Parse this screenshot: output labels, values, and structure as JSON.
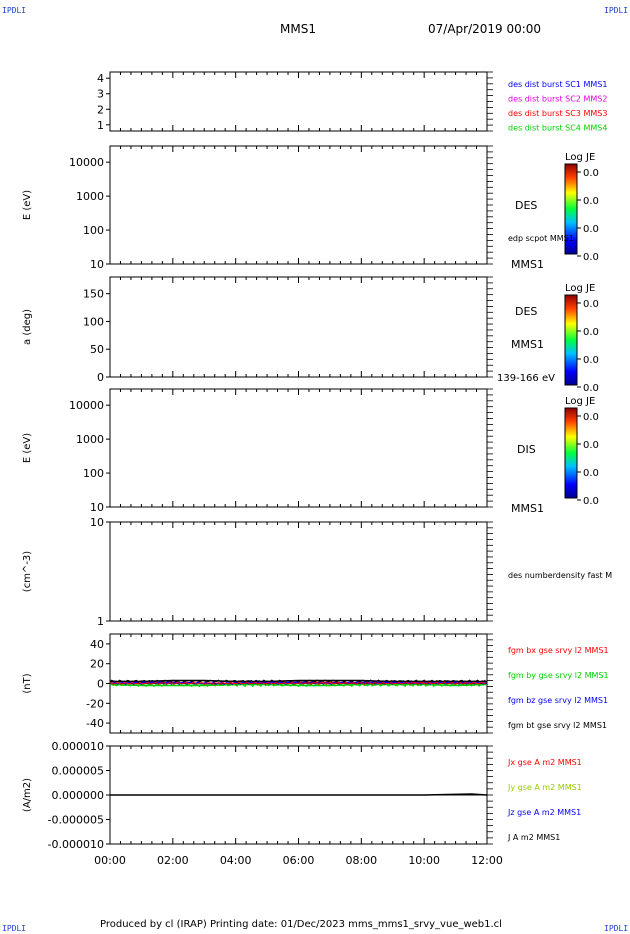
{
  "corner_label": "IPDLI",
  "header": {
    "spacecraft": "MMS1",
    "datetime": "07/Apr/2019 00:00"
  },
  "footer": "Produced by cl (IRAP)   Printing date: 01/Dec/2023   mms_mms1_srvy_vue_web1.cl",
  "colorbar": {
    "title": "Log JE",
    "ticks": [
      "0.0",
      "0.0",
      "0.0",
      "0.0"
    ]
  },
  "colors": {
    "blue": "#0000ff",
    "magenta": "#e000e0",
    "red": "#ff0000",
    "green": "#00d000",
    "black": "#000000",
    "jy": "#99cc00"
  },
  "chart_data": [
    {
      "type": "line",
      "panel": "burst-availability",
      "yticks": [
        "4",
        "3",
        "2",
        "1"
      ],
      "ylim": [
        0.6,
        4.4
      ],
      "legend": [
        {
          "label": "des dist burst SC1 MMS1",
          "color": "#0000ff"
        },
        {
          "label": "des dist burst SC2 MMS2",
          "color": "#e000e0"
        },
        {
          "label": "des dist burst SC3 MMS3",
          "color": "#ff0000"
        },
        {
          "label": "des dist burst SC4 MMS4",
          "color": "#00d000"
        }
      ],
      "series": []
    },
    {
      "type": "heatmap",
      "panel": "des-energy-spectrogram",
      "ylabel": "E (eV)",
      "yscale": "log",
      "yticks": [
        "10000",
        "1000",
        "100",
        "10"
      ],
      "ylim": [
        10,
        30000
      ],
      "side_labels": [
        "DES",
        "edp scpot MMS1",
        "MMS1"
      ]
    },
    {
      "type": "heatmap",
      "panel": "des-pitch-angle",
      "ylabel": "a (deg)",
      "yticks": [
        "150",
        "100",
        "50",
        "0"
      ],
      "ylim": [
        0,
        180
      ],
      "side_labels": [
        "DES",
        "MMS1",
        "139-166 eV"
      ]
    },
    {
      "type": "heatmap",
      "panel": "dis-energy-spectrogram",
      "ylabel": "E (eV)",
      "yscale": "log",
      "yticks": [
        "10000",
        "1000",
        "100",
        "10"
      ],
      "ylim": [
        10,
        30000
      ],
      "side_labels": [
        "DIS",
        "MMS1"
      ]
    },
    {
      "type": "line",
      "panel": "density",
      "ylabel": "(cm^-3)",
      "yscale": "log",
      "yticks": [
        "10",
        "1"
      ],
      "ylim": [
        1,
        10
      ],
      "legend": [
        {
          "label": "des numberdensity fast M",
          "color": "#000000"
        }
      ],
      "series": []
    },
    {
      "type": "line",
      "panel": "magnetic-field",
      "ylabel": "(nT)",
      "yticks": [
        "40",
        "20",
        "0",
        "-20",
        "-40"
      ],
      "ylim": [
        -50,
        50
      ],
      "legend": [
        {
          "label": "fgm bx gse srvy l2 MMS1",
          "color": "#ff0000"
        },
        {
          "label": "fgm by gse srvy l2 MMS1",
          "color": "#00d000"
        },
        {
          "label": "fgm bz gse srvy l2 MMS1",
          "color": "#0000ff"
        },
        {
          "label": "fgm bt gse srvy l2 MMS1",
          "color": "#000000"
        }
      ],
      "series": [
        {
          "name": "fgm bt gse srvy l2 MMS1",
          "color": "#000000",
          "x": [
            0,
            1,
            2,
            3,
            4,
            5,
            6,
            7,
            8,
            9,
            10,
            11,
            12
          ],
          "y": [
            2,
            2,
            3,
            3,
            2,
            2,
            3,
            3,
            3,
            2,
            2,
            2,
            2
          ]
        },
        {
          "name": "fgm bx gse srvy l2 MMS1",
          "color": "#ff0000",
          "x": [
            0,
            1,
            2,
            3,
            4,
            5,
            6,
            7,
            8,
            9,
            10,
            11,
            12
          ],
          "y": [
            0,
            0,
            1,
            0,
            -1,
            0,
            1,
            1,
            0,
            0,
            1,
            0,
            0
          ]
        },
        {
          "name": "fgm by gse srvy l2 MMS1",
          "color": "#00d000",
          "x": [
            0,
            1,
            2,
            3,
            4,
            5,
            6,
            7,
            8,
            9,
            10,
            11,
            12
          ],
          "y": [
            -1,
            -2,
            -2,
            -2,
            -1,
            -1,
            -2,
            -2,
            -1,
            -1,
            -1,
            -2,
            -1
          ]
        },
        {
          "name": "fgm bz gse srvy l2 MMS1",
          "color": "#0000ff",
          "x": [
            0,
            1,
            2,
            3,
            4,
            5,
            6,
            7,
            8,
            9,
            10,
            11,
            12
          ],
          "y": [
            0,
            1,
            1,
            0,
            0,
            1,
            1,
            0,
            1,
            1,
            0,
            1,
            0
          ]
        }
      ]
    },
    {
      "type": "line",
      "panel": "current-density",
      "ylabel": "(A/m2)",
      "yticks": [
        "0.000010",
        "0.000005",
        "0.000000",
        "-0.000005",
        "-0.000010"
      ],
      "ylim": [
        -1e-05,
        1e-05
      ],
      "legend": [
        {
          "label": "Jx gse A m2 MMS1",
          "color": "#ff0000"
        },
        {
          "label": "Jy gse A m2 MMS1",
          "color": "#99cc00"
        },
        {
          "label": "Jz gse A m2 MMS1",
          "color": "#0000ff"
        },
        {
          "label": "J A m2 MMS1",
          "color": "#000000"
        }
      ],
      "series": [
        {
          "name": "J A m2 MMS1",
          "color": "#000000",
          "x": [
            0,
            2,
            4,
            6,
            8,
            10,
            11.5,
            12
          ],
          "y": [
            0,
            0,
            0,
            0,
            0,
            0,
            2e-07,
            0
          ]
        }
      ]
    }
  ],
  "xaxis": {
    "ticks": [
      "00:00",
      "02:00",
      "04:00",
      "06:00",
      "08:00",
      "10:00",
      "12:00"
    ],
    "xlim": [
      0,
      12
    ]
  }
}
